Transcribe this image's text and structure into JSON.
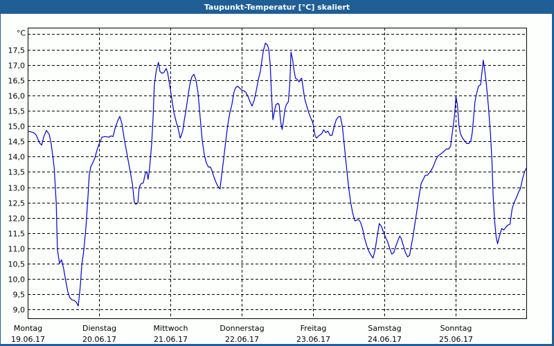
{
  "window": {
    "title": "Taupunkt-Temperatur [°C] skaliert"
  },
  "colors": {
    "frame": "#1f5f96",
    "background": "#fcfffc",
    "line": "#0000c8",
    "grid": "#000000"
  },
  "chart_data": {
    "type": "line",
    "title": "Taupunkt-Temperatur [°C] skaliert",
    "xlabel": "",
    "ylabel": "°C",
    "y_unit_label": "°C",
    "ylim": [
      8.7,
      18.5
    ],
    "y_ticks": [
      9.0,
      9.5,
      10.0,
      10.5,
      11.0,
      11.5,
      12.0,
      12.5,
      13.0,
      13.5,
      14.0,
      14.5,
      15.0,
      15.5,
      16.0,
      16.5,
      17.0,
      17.5
    ],
    "y_tick_labels": [
      "9,0",
      "9,5",
      "10,0",
      "10,5",
      "11,0",
      "11,5",
      "12,0",
      "12,5",
      "13,0",
      "13,5",
      "14,0",
      "14,5",
      "15,0",
      "15,5",
      "16,0",
      "16,5",
      "17,0",
      "17,5"
    ],
    "grid": true,
    "grid_style": "dashed",
    "x_unit": "hours since Montag 19.06.17 00:00",
    "xlim": [
      0,
      168
    ],
    "x_ticks": [
      0,
      24,
      48,
      72,
      96,
      120,
      144
    ],
    "x_tick_labels": [
      {
        "day": "Montag",
        "date": "19.06.17"
      },
      {
        "day": "Dienstag",
        "date": "20.06.17"
      },
      {
        "day": "Mittwoch",
        "date": "21.06.17"
      },
      {
        "day": "Donnerstag",
        "date": "22.06.17"
      },
      {
        "day": "Freitag",
        "date": "23.06.17"
      },
      {
        "day": "Samstag",
        "date": "24.06.17"
      },
      {
        "day": "Sonntag",
        "date": "25.06.17"
      }
    ],
    "legend": null,
    "series": [
      {
        "name": "Taupunkt",
        "color": "#0000c8",
        "points": [
          [
            0.0,
            14.84
          ],
          [
            1.9,
            14.79
          ],
          [
            2.8,
            14.72
          ],
          [
            4.0,
            14.45
          ],
          [
            4.7,
            14.38
          ],
          [
            5.4,
            14.65
          ],
          [
            6.3,
            14.86
          ],
          [
            7.2,
            14.74
          ],
          [
            7.9,
            14.43
          ],
          [
            8.9,
            13.66
          ],
          [
            9.6,
            12.48
          ],
          [
            10.0,
            10.96
          ],
          [
            10.7,
            10.51
          ],
          [
            11.4,
            10.62
          ],
          [
            12.1,
            10.33
          ],
          [
            12.8,
            9.94
          ],
          [
            13.5,
            9.58
          ],
          [
            14.2,
            9.38
          ],
          [
            14.9,
            9.31
          ],
          [
            15.6,
            9.29
          ],
          [
            16.3,
            9.24
          ],
          [
            17.0,
            9.11
          ],
          [
            17.7,
            9.77
          ],
          [
            18.2,
            10.45
          ],
          [
            18.9,
            10.95
          ],
          [
            19.6,
            11.69
          ],
          [
            20.3,
            12.71
          ],
          [
            20.7,
            13.39
          ],
          [
            21.2,
            13.66
          ],
          [
            21.9,
            13.8
          ],
          [
            22.6,
            13.96
          ],
          [
            23.3,
            14.21
          ],
          [
            24.0,
            14.41
          ],
          [
            25.0,
            14.64
          ],
          [
            26.1,
            14.66
          ],
          [
            27.3,
            14.64
          ],
          [
            28.0,
            14.68
          ],
          [
            28.7,
            14.66
          ],
          [
            29.4,
            14.93
          ],
          [
            30.3,
            15.18
          ],
          [
            31.0,
            15.32
          ],
          [
            31.7,
            15.09
          ],
          [
            32.4,
            14.64
          ],
          [
            33.1,
            14.25
          ],
          [
            33.8,
            13.87
          ],
          [
            34.5,
            13.51
          ],
          [
            35.2,
            13.12
          ],
          [
            35.9,
            12.49
          ],
          [
            36.4,
            12.44
          ],
          [
            37.1,
            12.49
          ],
          [
            37.5,
            12.99
          ],
          [
            38.2,
            13.12
          ],
          [
            38.9,
            13.14
          ],
          [
            39.6,
            13.46
          ],
          [
            40.1,
            13.51
          ],
          [
            40.5,
            13.26
          ],
          [
            41.0,
            13.62
          ],
          [
            41.7,
            14.41
          ],
          [
            42.2,
            15.3
          ],
          [
            42.6,
            16.34
          ],
          [
            43.3,
            16.84
          ],
          [
            44.0,
            17.09
          ],
          [
            44.5,
            16.79
          ],
          [
            45.2,
            16.73
          ],
          [
            45.9,
            16.77
          ],
          [
            46.6,
            16.89
          ],
          [
            47.1,
            16.75
          ],
          [
            47.8,
            16.34
          ],
          [
            48.5,
            15.89
          ],
          [
            49.2,
            15.44
          ],
          [
            49.9,
            15.16
          ],
          [
            50.6,
            14.93
          ],
          [
            51.3,
            14.61
          ],
          [
            51.7,
            14.7
          ],
          [
            52.2,
            14.86
          ],
          [
            52.7,
            15.21
          ],
          [
            53.1,
            15.43
          ],
          [
            53.8,
            15.89
          ],
          [
            54.5,
            16.34
          ],
          [
            55.2,
            16.61
          ],
          [
            55.9,
            16.7
          ],
          [
            56.6,
            16.52
          ],
          [
            57.3,
            16.11
          ],
          [
            58.0,
            15.32
          ],
          [
            58.7,
            14.57
          ],
          [
            59.4,
            14.07
          ],
          [
            60.1,
            13.8
          ],
          [
            60.8,
            13.66
          ],
          [
            61.5,
            13.66
          ],
          [
            61.9,
            13.57
          ],
          [
            62.6,
            13.35
          ],
          [
            63.3,
            13.17
          ],
          [
            64.0,
            13.03
          ],
          [
            64.7,
            12.94
          ],
          [
            65.2,
            13.35
          ],
          [
            65.9,
            13.89
          ],
          [
            66.6,
            14.48
          ],
          [
            67.3,
            15.02
          ],
          [
            68.0,
            15.43
          ],
          [
            68.7,
            15.7
          ],
          [
            69.4,
            16.11
          ],
          [
            69.9,
            16.25
          ],
          [
            70.6,
            16.31
          ],
          [
            71.3,
            16.25
          ],
          [
            72.0,
            16.18
          ],
          [
            72.7,
            16.16
          ],
          [
            73.4,
            16.11
          ],
          [
            74.1,
            15.98
          ],
          [
            74.8,
            15.8
          ],
          [
            75.5,
            15.66
          ],
          [
            76.2,
            15.84
          ],
          [
            76.9,
            16.16
          ],
          [
            77.6,
            16.52
          ],
          [
            78.3,
            16.79
          ],
          [
            78.8,
            17.16
          ],
          [
            79.3,
            17.47
          ],
          [
            80.0,
            17.72
          ],
          [
            80.7,
            17.65
          ],
          [
            81.1,
            17.52
          ],
          [
            81.6,
            17.02
          ],
          [
            82.1,
            15.93
          ],
          [
            82.5,
            15.21
          ],
          [
            83.0,
            15.48
          ],
          [
            83.5,
            15.7
          ],
          [
            84.2,
            15.75
          ],
          [
            84.6,
            15.7
          ],
          [
            85.1,
            15.16
          ],
          [
            85.6,
            14.89
          ],
          [
            86.1,
            15.21
          ],
          [
            86.5,
            15.52
          ],
          [
            87.0,
            15.7
          ],
          [
            87.7,
            15.8
          ],
          [
            88.2,
            16.39
          ],
          [
            88.6,
            17.43
          ],
          [
            89.1,
            17.2
          ],
          [
            89.6,
            16.84
          ],
          [
            90.1,
            16.57
          ],
          [
            90.8,
            16.52
          ],
          [
            91.3,
            16.45
          ],
          [
            91.7,
            16.52
          ],
          [
            92.2,
            16.57
          ],
          [
            92.7,
            16.23
          ],
          [
            93.2,
            15.89
          ],
          [
            93.9,
            15.66
          ],
          [
            94.6,
            15.43
          ],
          [
            95.3,
            15.25
          ],
          [
            95.8,
            15.16
          ],
          [
            96.2,
            14.98
          ],
          [
            96.7,
            14.68
          ],
          [
            97.2,
            14.61
          ],
          [
            97.9,
            14.68
          ],
          [
            98.9,
            14.75
          ],
          [
            99.6,
            14.88
          ],
          [
            100.3,
            14.79
          ],
          [
            101.0,
            14.84
          ],
          [
            101.7,
            14.7
          ],
          [
            102.4,
            14.7
          ],
          [
            103.1,
            14.98
          ],
          [
            103.8,
            15.21
          ],
          [
            104.5,
            15.3
          ],
          [
            105.2,
            15.32
          ],
          [
            105.9,
            14.98
          ],
          [
            106.6,
            14.3
          ],
          [
            107.3,
            13.62
          ],
          [
            108.0,
            12.99
          ],
          [
            108.7,
            12.49
          ],
          [
            109.4,
            12.13
          ],
          [
            110.1,
            11.9
          ],
          [
            110.6,
            11.92
          ],
          [
            111.3,
            11.94
          ],
          [
            112.0,
            11.85
          ],
          [
            112.7,
            11.63
          ],
          [
            113.4,
            11.31
          ],
          [
            114.1,
            11.08
          ],
          [
            114.8,
            10.9
          ],
          [
            115.5,
            10.77
          ],
          [
            116.2,
            10.68
          ],
          [
            116.9,
            10.95
          ],
          [
            117.6,
            11.4
          ],
          [
            118.3,
            11.81
          ],
          [
            119.0,
            11.72
          ],
          [
            119.7,
            11.54
          ],
          [
            120.4,
            11.36
          ],
          [
            121.1,
            11.22
          ],
          [
            121.8,
            11.0
          ],
          [
            122.5,
            10.81
          ],
          [
            123.2,
            10.86
          ],
          [
            123.9,
            11.08
          ],
          [
            124.6,
            11.26
          ],
          [
            125.2,
            11.4
          ],
          [
            125.7,
            11.31
          ],
          [
            126.4,
            11.08
          ],
          [
            127.1,
            10.86
          ],
          [
            127.8,
            10.72
          ],
          [
            128.5,
            10.77
          ],
          [
            128.9,
            11.0
          ],
          [
            129.6,
            11.36
          ],
          [
            130.3,
            11.81
          ],
          [
            131.0,
            12.26
          ],
          [
            131.7,
            12.71
          ],
          [
            132.4,
            13.12
          ],
          [
            133.1,
            13.26
          ],
          [
            133.8,
            13.39
          ],
          [
            134.5,
            13.39
          ],
          [
            135.2,
            13.48
          ],
          [
            135.9,
            13.57
          ],
          [
            136.6,
            13.71
          ],
          [
            137.3,
            13.89
          ],
          [
            138.0,
            14.02
          ],
          [
            138.7,
            14.07
          ],
          [
            139.4,
            14.12
          ],
          [
            140.1,
            14.18
          ],
          [
            140.8,
            14.25
          ],
          [
            141.6,
            14.25
          ],
          [
            142.3,
            14.34
          ],
          [
            142.7,
            14.66
          ],
          [
            143.2,
            15.02
          ],
          [
            143.7,
            15.43
          ],
          [
            144.1,
            15.97
          ],
          [
            144.6,
            15.7
          ],
          [
            145.1,
            15.02
          ],
          [
            145.6,
            14.75
          ],
          [
            146.3,
            14.61
          ],
          [
            147.0,
            14.52
          ],
          [
            147.7,
            14.43
          ],
          [
            148.4,
            14.43
          ],
          [
            149.1,
            14.52
          ],
          [
            149.6,
            14.79
          ],
          [
            150.1,
            15.36
          ],
          [
            150.5,
            15.8
          ],
          [
            151.0,
            16.05
          ],
          [
            151.7,
            16.31
          ],
          [
            152.4,
            16.36
          ],
          [
            152.9,
            16.81
          ],
          [
            153.3,
            17.16
          ],
          [
            153.8,
            16.81
          ],
          [
            154.3,
            16.41
          ],
          [
            155.0,
            15.68
          ],
          [
            155.7,
            14.77
          ],
          [
            156.2,
            13.87
          ],
          [
            156.6,
            12.74
          ],
          [
            157.1,
            11.92
          ],
          [
            157.6,
            11.38
          ],
          [
            158.1,
            11.15
          ],
          [
            158.8,
            11.42
          ],
          [
            159.5,
            11.65
          ],
          [
            160.2,
            11.6
          ],
          [
            160.9,
            11.69
          ],
          [
            161.6,
            11.76
          ],
          [
            162.3,
            11.79
          ],
          [
            163.0,
            12.29
          ],
          [
            163.7,
            12.51
          ],
          [
            164.4,
            12.65
          ],
          [
            165.1,
            12.83
          ],
          [
            165.8,
            12.96
          ],
          [
            166.5,
            13.28
          ],
          [
            167.2,
            13.51
          ],
          [
            167.9,
            13.64
          ]
        ]
      }
    ]
  }
}
